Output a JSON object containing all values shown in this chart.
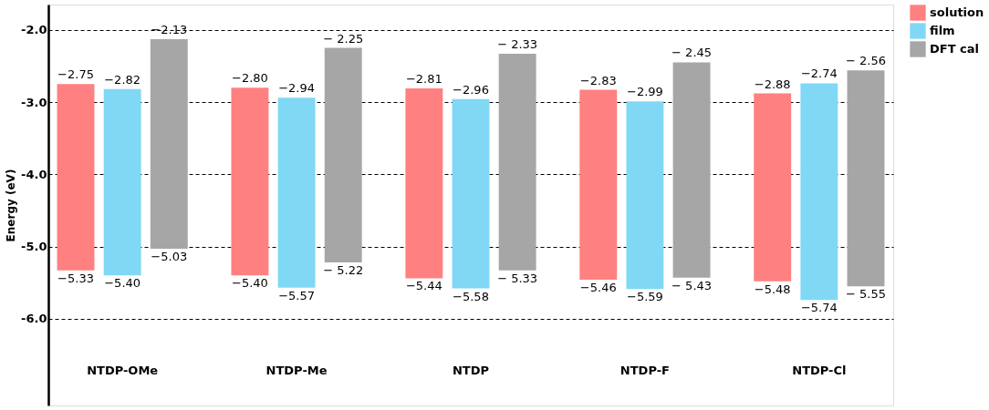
{
  "chart_data": {
    "type": "bar",
    "ylabel": "Energy (eV)",
    "categories": [
      "NTDP-OMe",
      "NTDP-Me",
      "NTDP",
      "NTDP-F",
      "NTDP-Cl"
    ],
    "series": [
      {
        "name": "solution",
        "color": "#ff8080",
        "base": [
          -5.33,
          -5.4,
          -5.44,
          -5.46,
          -5.48
        ],
        "values": [
          2.58,
          2.6,
          2.63,
          2.63,
          2.6
        ],
        "value_labels": [
          "−2.75",
          "−2.80",
          "−2.81",
          "−2.83",
          "−2.88"
        ]
      },
      {
        "name": "film",
        "color": "#80d8f5",
        "base": [
          -5.4,
          -5.57,
          -5.58,
          -5.59,
          -5.74
        ],
        "values": [
          2.58,
          2.63,
          2.62,
          2.6,
          3.0
        ],
        "value_labels": [
          "−2.82",
          "−2.94",
          "−2.96",
          "−2.99",
          "−2.74"
        ]
      },
      {
        "name": "DFT cal",
        "color": "#a6a6a6",
        "base": [
          -5.03,
          -5.22,
          -5.33,
          -5.43,
          -5.55
        ],
        "values": [
          2.9,
          2.97,
          3.0,
          2.98,
          2.99
        ],
        "value_labels": [
          "−2.13",
          "− 2.25",
          "− 2.33",
          "− 2.45",
          "− 2.56"
        ]
      }
    ],
    "ylim": [
      -7.2,
      -1.65
    ],
    "yticks": [
      {
        "value": -2,
        "label": "-2.0"
      },
      {
        "value": -3,
        "label": "-3.0"
      },
      {
        "value": -4,
        "label": "-4.0"
      },
      {
        "value": -5,
        "label": "-5.0"
      },
      {
        "value": -6,
        "label": "-6.0"
      }
    ],
    "grid": "y",
    "legend": "top right",
    "annotations": [
      "−5.33",
      "−5.40",
      "−5.44",
      "−5.46",
      "−5.48",
      "−5.40",
      "−5.57",
      "−5.58",
      "−5.59",
      "−5.74",
      "−5.03",
      "− 5.22",
      "− 5.33",
      "− 5.43",
      "− 5.55"
    ]
  }
}
